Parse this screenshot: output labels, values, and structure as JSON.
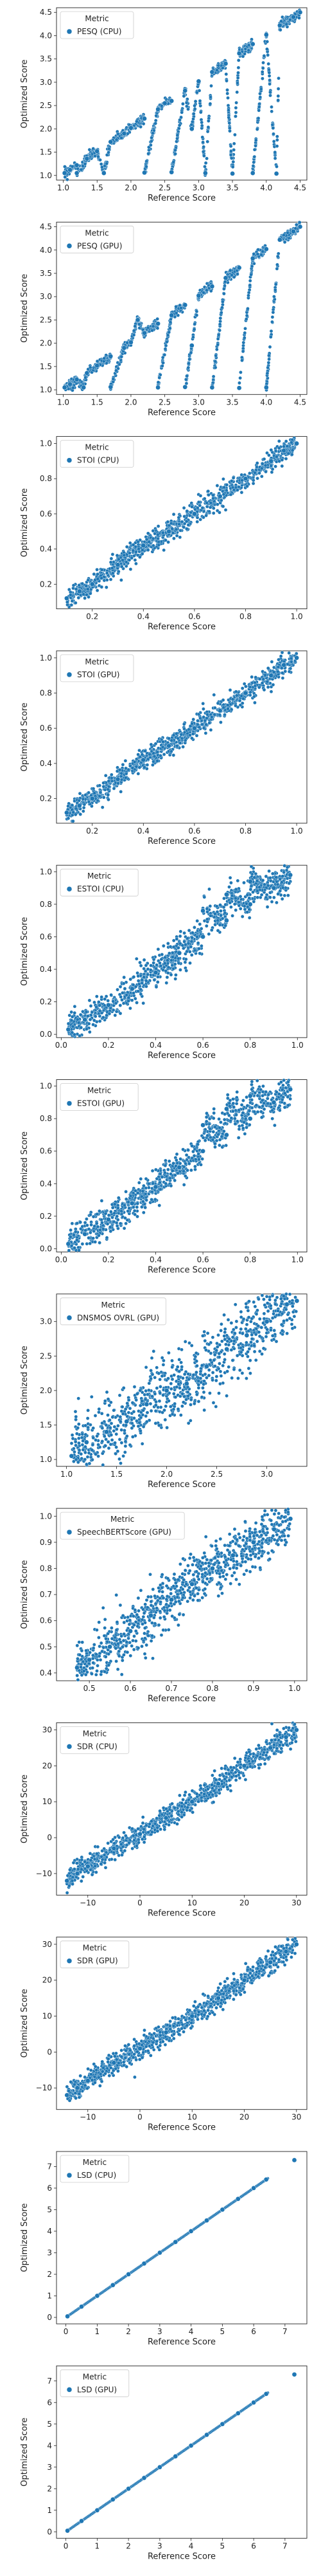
{
  "chart_data": [
    {
      "type": "scatter",
      "xlabel": "Reference Score",
      "ylabel": "Optimized Score",
      "legend_title": "Metric",
      "legend_entry": "PESQ (CPU)",
      "legend_loc": "top-left",
      "xlim": [
        0.9,
        4.6
      ],
      "ylim": [
        0.9,
        4.6
      ],
      "xticks": [
        1.0,
        1.5,
        2.0,
        2.5,
        3.0,
        3.5,
        4.0,
        4.5
      ],
      "yticks": [
        1.0,
        1.5,
        2.0,
        2.5,
        3.0,
        3.5,
        4.0,
        4.5
      ],
      "tick_labels_x": [
        "1.0",
        "1.5",
        "2.0",
        "2.5",
        "3.0",
        "3.5",
        "4.0",
        "4.5"
      ],
      "tick_labels_y": [
        "1.0",
        "1.5",
        "2.0",
        "2.5",
        "3.0",
        "3.5",
        "4.0",
        "4.5"
      ],
      "pattern": "diagonal",
      "spread": 0.05,
      "x": [
        1.02,
        1.1,
        1.2,
        1.35,
        1.5,
        1.7,
        1.9,
        2.0,
        2.2,
        2.4,
        2.6,
        2.8,
        3.0,
        3.2,
        3.4,
        3.6,
        3.8,
        4.0,
        4.2,
        4.4,
        4.5,
        2.5,
        2.9,
        1.2,
        1.6,
        2.2,
        2.6,
        3.1,
        3.5,
        3.8,
        4.15
      ],
      "y": [
        1.05,
        1.12,
        1.22,
        1.36,
        1.52,
        1.72,
        1.9,
        2.02,
        2.22,
        2.42,
        2.6,
        2.82,
        3.02,
        3.22,
        3.4,
        3.62,
        3.82,
        4.02,
        4.22,
        4.4,
        4.5,
        2.55,
        2.0,
        1.05,
        1.05,
        1.06,
        1.07,
        1.05,
        1.04,
        1.05,
        1.04
      ]
    },
    {
      "type": "scatter",
      "xlabel": "Reference Score",
      "ylabel": "Optimized Score",
      "legend_title": "Metric",
      "legend_entry": "PESQ (GPU)",
      "legend_loc": "top-left",
      "xlim": [
        0.9,
        4.6
      ],
      "ylim": [
        0.9,
        4.6
      ],
      "xticks": [
        1.0,
        1.5,
        2.0,
        2.5,
        3.0,
        3.5,
        4.0,
        4.5
      ],
      "yticks": [
        1.0,
        1.5,
        2.0,
        2.5,
        3.0,
        3.5,
        4.0,
        4.5
      ],
      "tick_labels_x": [
        "1.0",
        "1.5",
        "2.0",
        "2.5",
        "3.0",
        "3.5",
        "4.0",
        "4.5"
      ],
      "tick_labels_y": [
        "1.0",
        "1.5",
        "2.0",
        "2.5",
        "3.0",
        "3.5",
        "4.0",
        "4.5"
      ],
      "pattern": "diagonal",
      "spread": 0.05,
      "x": [
        1.02,
        1.1,
        1.2,
        1.35,
        1.5,
        1.7,
        1.9,
        2.0,
        2.2,
        2.4,
        2.6,
        2.8,
        3.0,
        3.2,
        3.4,
        3.6,
        3.8,
        4.0,
        4.2,
        4.4,
        4.5,
        2.1,
        2.9,
        1.3,
        1.7,
        2.4,
        2.8,
        3.2,
        3.6,
        4.0
      ],
      "y": [
        1.05,
        1.12,
        1.22,
        1.36,
        1.52,
        1.72,
        1.9,
        2.02,
        2.22,
        2.42,
        2.6,
        2.82,
        3.02,
        3.22,
        3.4,
        3.62,
        3.82,
        4.02,
        4.22,
        4.4,
        4.5,
        2.5,
        1.95,
        1.05,
        1.06,
        1.05,
        1.06,
        1.05,
        1.04,
        1.05
      ]
    },
    {
      "type": "scatter",
      "xlabel": "Reference Score",
      "ylabel": "Optimized Score",
      "legend_title": "Metric",
      "legend_entry": "STOI (CPU)",
      "legend_loc": "top-left",
      "xlim": [
        0.06,
        1.04
      ],
      "ylim": [
        0.06,
        1.04
      ],
      "xticks": [
        0.2,
        0.4,
        0.6,
        0.8,
        1.0
      ],
      "yticks": [
        0.2,
        0.4,
        0.6,
        0.8,
        1.0
      ],
      "tick_labels_x": [
        "0.2",
        "0.4",
        "0.6",
        "0.8",
        "1.0"
      ],
      "tick_labels_y": [
        "0.2",
        "0.4",
        "0.6",
        "0.8",
        "1.0"
      ],
      "pattern": "diagonal",
      "spread": 0.03,
      "x": [
        0.1,
        0.15,
        0.2,
        0.3,
        0.4,
        0.5,
        0.6,
        0.7,
        0.8,
        0.9,
        0.95,
        1.0
      ],
      "y": [
        0.12,
        0.16,
        0.2,
        0.31,
        0.42,
        0.5,
        0.6,
        0.7,
        0.8,
        0.9,
        0.96,
        1.0
      ]
    },
    {
      "type": "scatter",
      "xlabel": "Reference Score",
      "ylabel": "Optimized Score",
      "legend_title": "Metric",
      "legend_entry": "STOI (GPU)",
      "legend_loc": "top-left",
      "xlim": [
        0.06,
        1.04
      ],
      "ylim": [
        0.06,
        1.04
      ],
      "xticks": [
        0.2,
        0.4,
        0.6,
        0.8,
        1.0
      ],
      "yticks": [
        0.2,
        0.4,
        0.6,
        0.8,
        1.0
      ],
      "tick_labels_x": [
        "0.2",
        "0.4",
        "0.6",
        "0.8",
        "1.0"
      ],
      "tick_labels_y": [
        "0.2",
        "0.4",
        "0.6",
        "0.8",
        "1.0"
      ],
      "pattern": "diagonal",
      "spread": 0.03,
      "x": [
        0.1,
        0.15,
        0.2,
        0.3,
        0.4,
        0.5,
        0.6,
        0.7,
        0.8,
        0.9,
        0.95,
        1.0
      ],
      "y": [
        0.12,
        0.16,
        0.2,
        0.31,
        0.42,
        0.5,
        0.6,
        0.7,
        0.8,
        0.9,
        0.96,
        1.0
      ]
    },
    {
      "type": "scatter",
      "xlabel": "Reference Score",
      "ylabel": "Optimized Score",
      "legend_title": "Metric",
      "legend_entry": "ESTOI (CPU)",
      "legend_loc": "top-left",
      "xlim": [
        -0.02,
        1.04
      ],
      "ylim": [
        -0.02,
        1.04
      ],
      "xticks": [
        0.0,
        0.2,
        0.4,
        0.6,
        0.8,
        1.0
      ],
      "yticks": [
        0.0,
        0.2,
        0.4,
        0.6,
        0.8,
        1.0
      ],
      "tick_labels_x": [
        "0.0",
        "0.2",
        "0.4",
        "0.6",
        "0.8",
        "1.0"
      ],
      "tick_labels_y": [
        "0.0",
        "0.2",
        "0.4",
        "0.6",
        "0.8",
        "1.0"
      ],
      "pattern": "diagonal",
      "spread": 0.05,
      "x": [
        0.03,
        0.1,
        0.2,
        0.3,
        0.4,
        0.5,
        0.6,
        0.7,
        0.8,
        0.9,
        0.97,
        0.6,
        0.7,
        0.8
      ],
      "y": [
        0.03,
        0.09,
        0.18,
        0.28,
        0.38,
        0.5,
        0.6,
        0.7,
        0.8,
        0.9,
        0.98,
        0.76,
        0.86,
        0.94
      ]
    },
    {
      "type": "scatter",
      "xlabel": "Reference Score",
      "ylabel": "Optimized Score",
      "legend_title": "Metric",
      "legend_entry": "ESTOI (GPU)",
      "legend_loc": "top-left",
      "xlim": [
        -0.02,
        1.04
      ],
      "ylim": [
        -0.02,
        1.04
      ],
      "xticks": [
        0.0,
        0.2,
        0.4,
        0.6,
        0.8,
        1.0
      ],
      "yticks": [
        0.0,
        0.2,
        0.4,
        0.6,
        0.8,
        1.0
      ],
      "tick_labels_x": [
        "0.0",
        "0.2",
        "0.4",
        "0.6",
        "0.8",
        "1.0"
      ],
      "tick_labels_y": [
        "0.0",
        "0.2",
        "0.4",
        "0.6",
        "0.8",
        "1.0"
      ],
      "pattern": "diagonal",
      "spread": 0.05,
      "x": [
        0.03,
        0.1,
        0.2,
        0.3,
        0.4,
        0.5,
        0.6,
        0.7,
        0.8,
        0.9,
        0.97,
        0.6,
        0.7,
        0.8
      ],
      "y": [
        0.03,
        0.09,
        0.18,
        0.28,
        0.38,
        0.5,
        0.6,
        0.7,
        0.8,
        0.9,
        0.98,
        0.76,
        0.86,
        0.94
      ]
    },
    {
      "type": "scatter",
      "xlabel": "Reference Score",
      "ylabel": "Optimized Score",
      "legend_title": "Metric",
      "legend_entry": "DNSMOS OVRL (GPU)",
      "legend_loc": "top-left",
      "xlim": [
        0.9,
        3.4
      ],
      "ylim": [
        0.9,
        3.4
      ],
      "xticks": [
        1.0,
        1.5,
        2.0,
        2.5,
        3.0
      ],
      "yticks": [
        1.0,
        1.5,
        2.0,
        2.5,
        3.0
      ],
      "tick_labels_x": [
        "1.0",
        "1.5",
        "2.0",
        "2.5",
        "3.0"
      ],
      "tick_labels_y": [
        "1.0",
        "1.5",
        "2.0",
        "2.5",
        "3.0"
      ],
      "pattern": "diagonal",
      "spread": 0.25,
      "x": [
        1.05,
        1.2,
        1.4,
        1.6,
        1.8,
        2.0,
        2.2,
        2.4,
        2.6,
        2.8,
        3.0,
        3.2,
        3.3
      ],
      "y": [
        1.05,
        1.25,
        1.4,
        1.55,
        1.8,
        2.0,
        2.1,
        2.35,
        2.6,
        2.8,
        3.0,
        3.25,
        3.3
      ]
    },
    {
      "type": "scatter",
      "xlabel": "Reference Score",
      "ylabel": "Optimized Score",
      "legend_title": "Metric",
      "legend_entry": "SpeechBERTScore (GPU)",
      "legend_loc": "top-left",
      "xlim": [
        0.42,
        1.03
      ],
      "ylim": [
        0.37,
        1.03
      ],
      "xticks": [
        0.5,
        0.6,
        0.7,
        0.8,
        0.9,
        1.0
      ],
      "yticks": [
        0.4,
        0.5,
        0.6,
        0.7,
        0.8,
        0.9,
        1.0
      ],
      "tick_labels_x": [
        "0.5",
        "0.6",
        "0.7",
        "0.8",
        "0.9",
        "1.0"
      ],
      "tick_labels_y": [
        "0.4",
        "0.5",
        "0.6",
        "0.7",
        "0.8",
        "0.9",
        "1.0"
      ],
      "pattern": "diagonal",
      "spread": 0.05,
      "x": [
        0.47,
        0.5,
        0.55,
        0.6,
        0.65,
        0.7,
        0.75,
        0.8,
        0.85,
        0.9,
        0.95,
        0.99
      ],
      "y": [
        0.42,
        0.45,
        0.5,
        0.56,
        0.62,
        0.68,
        0.74,
        0.8,
        0.85,
        0.9,
        0.95,
        0.99
      ]
    },
    {
      "type": "scatter",
      "xlabel": "Reference Score",
      "ylabel": "Optimized Score",
      "legend_title": "Metric",
      "legend_entry": "SDR (CPU)",
      "legend_loc": "top-left",
      "xlim": [
        -16,
        32
      ],
      "ylim": [
        -16,
        32
      ],
      "xticks": [
        -10,
        0,
        10,
        20,
        30
      ],
      "yticks": [
        -10,
        0,
        10,
        20,
        30
      ],
      "tick_labels_x": [
        "−10",
        "0",
        "10",
        "20",
        "30"
      ],
      "tick_labels_y": [
        "−10",
        "0",
        "10",
        "20",
        "30"
      ],
      "pattern": "diagonal",
      "spread": 1.5,
      "x": [
        -14,
        -12,
        -10,
        -5,
        0,
        5,
        10,
        15,
        20,
        25,
        28,
        30
      ],
      "y": [
        -12,
        -10,
        -8,
        -3,
        1,
        5.5,
        10,
        15,
        20,
        25,
        28,
        30
      ]
    },
    {
      "type": "scatter",
      "xlabel": "Reference Score",
      "ylabel": "Optimized Score",
      "legend_title": "Metric",
      "legend_entry": "SDR (GPU)",
      "legend_loc": "top-left",
      "xlim": [
        -16,
        32
      ],
      "ylim": [
        -16,
        32
      ],
      "xticks": [
        -10,
        0,
        10,
        20,
        30
      ],
      "yticks": [
        -10,
        0,
        10,
        20,
        30
      ],
      "tick_labels_x": [
        "−10",
        "0",
        "10",
        "20",
        "30"
      ],
      "tick_labels_y": [
        "−10",
        "0",
        "10",
        "20",
        "30"
      ],
      "pattern": "diagonal",
      "spread": 1.5,
      "x": [
        -14,
        -12,
        -10,
        -5,
        0,
        5,
        10,
        15,
        20,
        25,
        28,
        30
      ],
      "y": [
        -12,
        -10,
        -8,
        -3,
        1,
        5.5,
        10,
        15,
        20,
        25,
        28,
        30
      ]
    },
    {
      "type": "scatter",
      "xlabel": "Reference Score",
      "ylabel": "Optimized Score",
      "legend_title": "Metric",
      "legend_entry": "LSD (CPU)",
      "legend_loc": "top-left",
      "xlim": [
        -0.3,
        7.7
      ],
      "ylim": [
        -0.3,
        7.7
      ],
      "xticks": [
        0,
        1,
        2,
        3,
        4,
        5,
        6,
        7
      ],
      "yticks": [
        0,
        1,
        2,
        3,
        4,
        5,
        6,
        7
      ],
      "tick_labels_x": [
        "0",
        "1",
        "2",
        "3",
        "4",
        "5",
        "6",
        "7"
      ],
      "tick_labels_y": [
        "0",
        "1",
        "2",
        "3",
        "4",
        "5",
        "6",
        "7"
      ],
      "pattern": "line",
      "spread": 0.0,
      "x": [
        0.05,
        0.5,
        1,
        1.5,
        2,
        2.5,
        3,
        3.5,
        4,
        4.5,
        5,
        5.5,
        6,
        6.4,
        7.3
      ],
      "y": [
        0.05,
        0.5,
        1,
        1.5,
        2,
        2.5,
        3,
        3.5,
        4,
        4.5,
        5,
        5.5,
        6,
        6.4,
        7.3
      ]
    },
    {
      "type": "scatter",
      "xlabel": "Reference Score",
      "ylabel": "Optimized Score",
      "legend_title": "Metric",
      "legend_entry": "LSD (GPU)",
      "legend_loc": "top-left",
      "xlim": [
        -0.3,
        7.7
      ],
      "ylim": [
        -0.3,
        7.7
      ],
      "xticks": [
        0,
        1,
        2,
        3,
        4,
        5,
        6,
        7
      ],
      "yticks": [
        0,
        1,
        2,
        3,
        4,
        5,
        6,
        7
      ],
      "tick_labels_x": [
        "0",
        "1",
        "2",
        "3",
        "4",
        "5",
        "6",
        "7"
      ],
      "tick_labels_y": [
        "0",
        "1",
        "2",
        "3",
        "4",
        "5",
        "6",
        "7"
      ],
      "pattern": "line",
      "spread": 0.0,
      "x": [
        0.05,
        0.5,
        1,
        1.5,
        2,
        2.5,
        3,
        3.5,
        4,
        4.5,
        5,
        5.5,
        6,
        6.4,
        7.3
      ],
      "y": [
        0.05,
        0.5,
        1,
        1.5,
        2,
        2.5,
        3,
        3.5,
        4,
        4.5,
        5,
        5.5,
        6,
        6.4,
        7.3
      ]
    }
  ],
  "style": {
    "marker_fill": "#1f77b4",
    "marker_edge": "#ffffff",
    "axis_color": "#222222"
  }
}
